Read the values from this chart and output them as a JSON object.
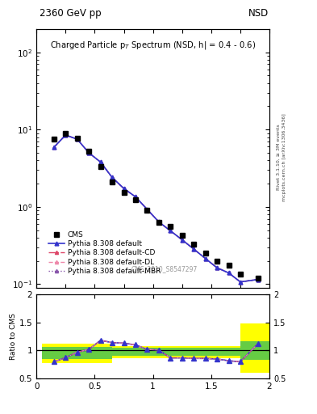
{
  "title_left": "2360 GeV pp",
  "title_right": "NSD",
  "plot_title": "Charged Particle p$_T$ Spectrum (NSD, h| = 0.4 - 0.6)",
  "watermark": "CMS_2010_S8547297",
  "right_label_top": "Rivet 3.1.10, ≥ 3M events",
  "right_label_bot": "mcplots.cern.ch [arXiv:1306.3436]",
  "cms_x": [
    0.15,
    0.25,
    0.35,
    0.45,
    0.55,
    0.65,
    0.75,
    0.85,
    0.95,
    1.05,
    1.15,
    1.25,
    1.35,
    1.45,
    1.55,
    1.65,
    1.75,
    1.9
  ],
  "cms_y": [
    7.5,
    9.0,
    7.8,
    5.2,
    3.3,
    2.1,
    1.55,
    1.25,
    0.9,
    0.63,
    0.56,
    0.43,
    0.33,
    0.25,
    0.2,
    0.175,
    0.135,
    0.12
  ],
  "pythia_default_x": [
    0.15,
    0.25,
    0.35,
    0.45,
    0.55,
    0.65,
    0.75,
    0.85,
    0.95,
    1.05,
    1.15,
    1.25,
    1.35,
    1.45,
    1.55,
    1.65,
    1.75,
    1.9
  ],
  "pythia_default_y": [
    5.9,
    8.5,
    7.5,
    5.0,
    3.8,
    2.4,
    1.73,
    1.35,
    0.93,
    0.64,
    0.49,
    0.375,
    0.285,
    0.215,
    0.163,
    0.14,
    0.107,
    0.115
  ],
  "ratio_x": [
    0.15,
    0.25,
    0.35,
    0.45,
    0.55,
    0.65,
    0.75,
    0.85,
    0.95,
    1.05,
    1.15,
    1.25,
    1.35,
    1.45,
    1.55,
    1.65,
    1.75,
    1.9
  ],
  "ratio_y": [
    0.8,
    0.875,
    0.97,
    1.02,
    1.18,
    1.14,
    1.13,
    1.1,
    1.02,
    1.01,
    0.87,
    0.87,
    0.86,
    0.86,
    0.85,
    0.82,
    0.8,
    1.12
  ],
  "yellow_band_segments": [
    {
      "x_start": 0.05,
      "x_end": 0.65,
      "y_low": 0.78,
      "y_high": 1.12
    },
    {
      "x_start": 0.65,
      "x_end": 1.75,
      "y_low": 0.86,
      "y_high": 1.08
    },
    {
      "x_start": 1.75,
      "x_end": 2.02,
      "y_low": 0.6,
      "y_high": 1.48
    }
  ],
  "green_band_segments": [
    {
      "x_start": 0.05,
      "x_end": 0.65,
      "y_low": 0.85,
      "y_high": 1.07
    },
    {
      "x_start": 0.65,
      "x_end": 1.75,
      "y_low": 0.9,
      "y_high": 1.05
    },
    {
      "x_start": 1.75,
      "x_end": 2.02,
      "y_low": 0.84,
      "y_high": 1.16
    }
  ],
  "xlim": [
    0.0,
    2.0
  ],
  "ylim_main": [
    0.09,
    200.0
  ],
  "ylim_ratio": [
    0.5,
    2.0
  ],
  "ylabel_ratio": "Ratio to CMS",
  "color_blue": "#3333cc",
  "color_red_dash": "#dd4466",
  "color_pink_dash": "#ee88aa",
  "color_purple_dot": "#8855aa",
  "color_yellow": "#ffff00",
  "color_green": "#66cc44"
}
